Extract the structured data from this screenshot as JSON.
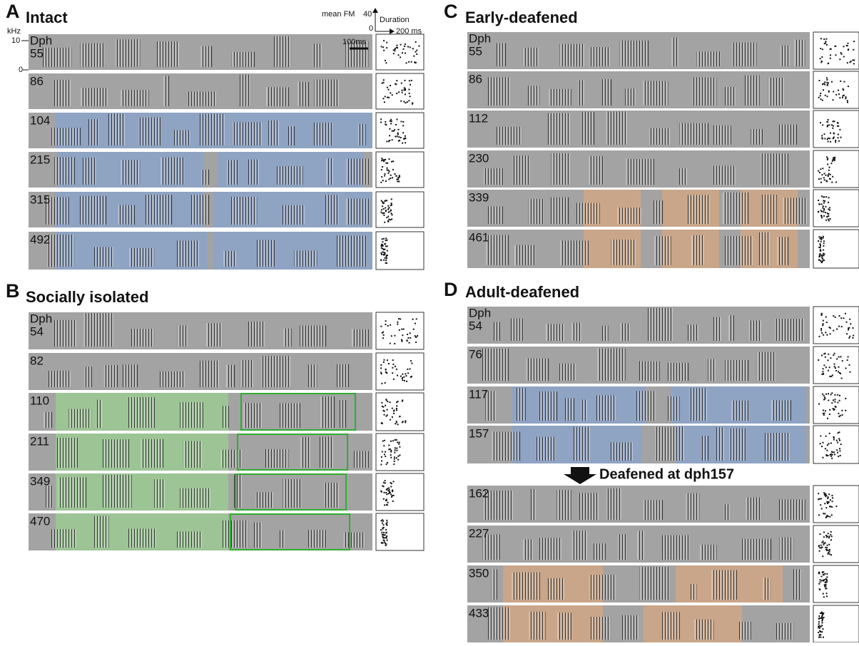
{
  "axis": {
    "khz": "kHz",
    "khz_max": "10",
    "khz_min": "0",
    "fm": "mean FM",
    "fm_max": "40",
    "fm_min": "0",
    "duration": "Duration",
    "duration_max": "200 ms",
    "scale": "100ms"
  },
  "panels": [
    {
      "letter": "A",
      "title": "Intact",
      "dph": "Dph",
      "rows": [
        "55",
        "86",
        "104",
        "215",
        "315",
        "492"
      ]
    },
    {
      "letter": "B",
      "title": "Socially isolated",
      "dph": "Dph",
      "rows": [
        "54",
        "82",
        "110",
        "211",
        "349",
        "470"
      ]
    },
    {
      "letter": "C",
      "title": "Early-deafened",
      "dph": "Dph",
      "rows": [
        "55",
        "86",
        "112",
        "230",
        "339",
        "461"
      ]
    },
    {
      "letter": "D",
      "title": "Adult-deafened",
      "dph": "Dph",
      "rows": [
        "54",
        "76",
        "117",
        "157",
        "162",
        "227",
        "350",
        "433"
      ],
      "annotation": "Deafened at dph157"
    }
  ]
}
